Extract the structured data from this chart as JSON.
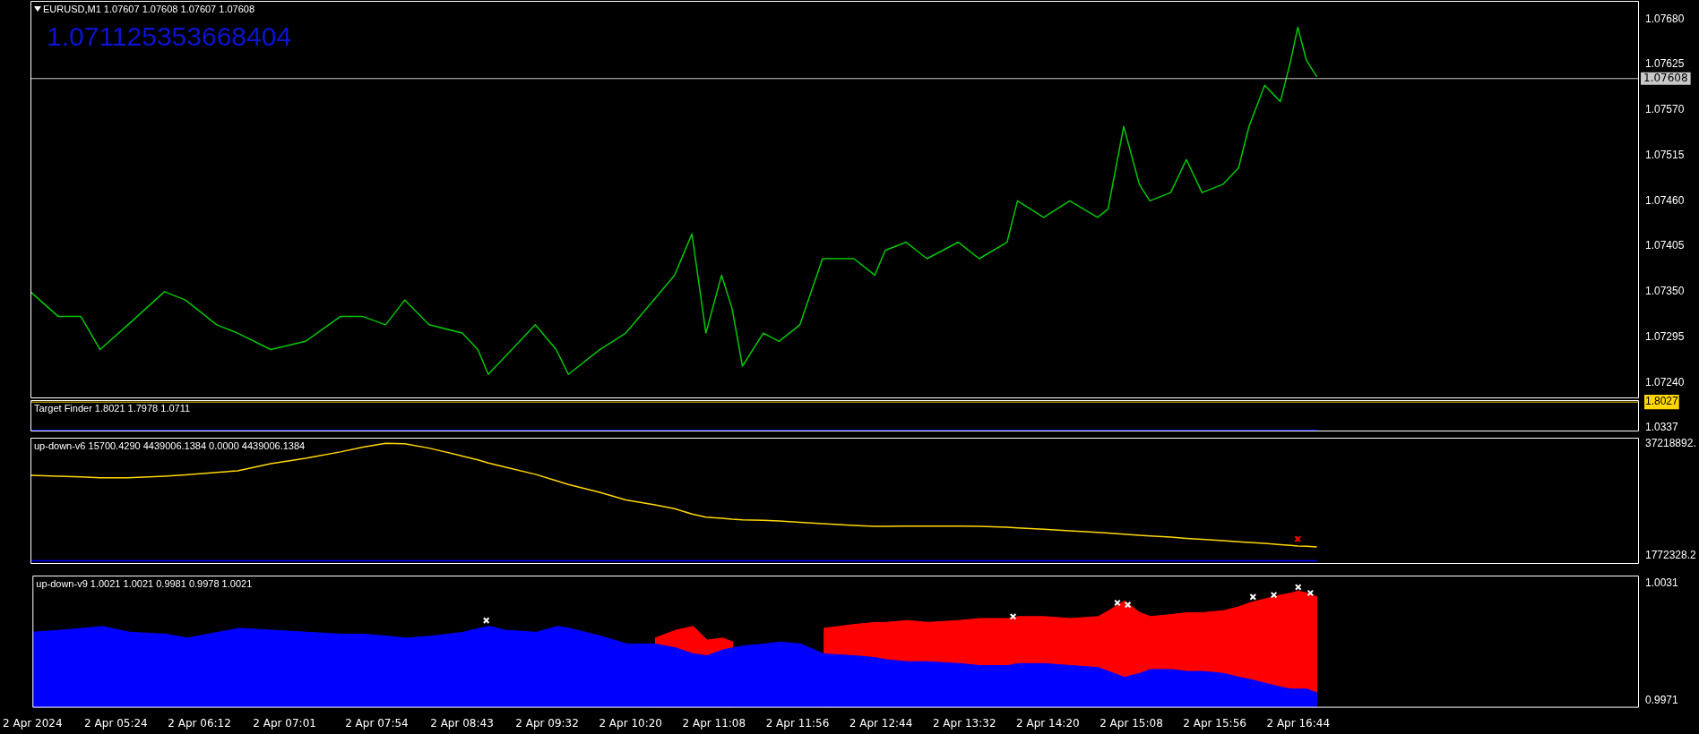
{
  "chart_data": [
    {
      "type": "line",
      "title": "EURUSD,M1 1.07607 1.07608 1.07607 1.07608",
      "annotations": [
        "1.071125353668404"
      ],
      "x": [
        "2024-04-02T04:36",
        "2024-04-02T04:52",
        "2024-04-02T05:05",
        "2024-04-02T05:16",
        "2024-04-02T05:32",
        "2024-04-02T05:53",
        "2024-04-02T06:05",
        "2024-04-02T06:23",
        "2024-04-02T06:35",
        "2024-04-02T06:54",
        "2024-04-02T07:14",
        "2024-04-02T07:34",
        "2024-04-02T07:47",
        "2024-04-02T08:00",
        "2024-04-02T08:11",
        "2024-04-02T08:25",
        "2024-04-02T08:44",
        "2024-04-02T08:53",
        "2024-04-02T08:59",
        "2024-04-02T09:08",
        "2024-04-02T09:26",
        "2024-04-02T09:38",
        "2024-04-02T09:45",
        "2024-04-02T10:03",
        "2024-04-02T10:18",
        "2024-04-02T10:34",
        "2024-04-02T10:46",
        "2024-04-02T10:56",
        "2024-04-02T11:04",
        "2024-04-02T11:13",
        "2024-04-02T11:19",
        "2024-04-02T11:25",
        "2024-04-02T11:37",
        "2024-04-02T11:46",
        "2024-04-02T11:58",
        "2024-04-02T12:11",
        "2024-04-02T12:29",
        "2024-04-02T12:41",
        "2024-04-02T12:47",
        "2024-04-02T12:59",
        "2024-04-02T13:11",
        "2024-04-02T13:29",
        "2024-04-02T13:41",
        "2024-04-02T13:57",
        "2024-04-02T14:03",
        "2024-04-02T14:18",
        "2024-04-02T14:33",
        "2024-04-02T14:49",
        "2024-04-02T14:55",
        "2024-04-02T15:04",
        "2024-04-02T15:13",
        "2024-04-02T15:19",
        "2024-04-02T15:31",
        "2024-04-02T15:40",
        "2024-04-02T15:49",
        "2024-04-02T16:01",
        "2024-04-02T16:10",
        "2024-04-02T16:16",
        "2024-04-02T16:25",
        "2024-04-02T16:34",
        "2024-04-02T16:40",
        "2024-04-02T16:44",
        "2024-04-02T16:49",
        "2024-04-02T16:55"
      ],
      "series": [
        {
          "color": "#00c800",
          "values": [
            1.0735,
            1.0732,
            1.0732,
            1.0728,
            1.0731,
            1.0735,
            1.0734,
            1.0731,
            1.073,
            1.0728,
            1.0729,
            1.0732,
            1.0732,
            1.0731,
            1.0734,
            1.0731,
            1.073,
            1.0728,
            1.0725,
            1.0727,
            1.0731,
            1.0728,
            1.0725,
            1.0728,
            1.073,
            1.0734,
            1.0737,
            1.0742,
            1.073,
            1.0737,
            1.0733,
            1.0726,
            1.073,
            1.0729,
            1.0731,
            1.0739,
            1.0739,
            1.0737,
            1.074,
            1.0741,
            1.0739,
            1.0741,
            1.0739,
            1.0741,
            1.0746,
            1.0744,
            1.0746,
            1.0744,
            1.0745,
            1.0755,
            1.0748,
            1.0746,
            1.0747,
            1.0751,
            1.0747,
            1.0748,
            1.075,
            1.0755,
            1.076,
            1.0758,
            1.0763,
            1.0767,
            1.0763,
            1.0761
          ]
        }
      ],
      "xlim": [
        "2024-04-02T04:36",
        "2024-04-02T20:00"
      ],
      "ylim": [
        1.07221,
        1.07702
      ],
      "yticks": [
        {
          "value": 1.0724,
          "label": "1.07240"
        },
        1.07295,
        {
          "value": 1.0735,
          "label": "1.07350"
        },
        1.07405,
        {
          "value": 1.0746,
          "label": "1.07460"
        },
        1.07515,
        {
          "value": 1.0757,
          "label": "1.07570"
        },
        1.07625,
        {
          "value": 1.0768,
          "label": "1.07680"
        }
      ],
      "ref_lines": [
        {
          "axis": "y",
          "value": 1.07608,
          "label": "1.07608",
          "color": "#c8c8c8"
        }
      ],
      "tick_labels": "y"
    },
    {
      "type": "line",
      "title": "Target Finder 1.8021 1.7978 1.0711",
      "series": [
        {
          "color": "#0000ff",
          "x": [
            "2024-04-02T04:36",
            "2024-04-02T16:55"
          ],
          "values": [
            0.96,
            0.96
          ]
        }
      ],
      "xlim": [
        "2024-04-02T04:36",
        "2024-04-02T20:00"
      ],
      "ylim": [
        0.93,
        1.86
      ],
      "yticks": [
        1.0337,
        1.8027
      ],
      "ref_lines": [
        {
          "axis": "y",
          "value": 1.8027,
          "color": "#ffd700"
        }
      ],
      "tick_labels": "y"
    },
    {
      "type": "line",
      "title": "up-down-v6 15700.4290 4439006.1384 0.0000 4439006.1384",
      "x": [
        "2024-04-02T04:36",
        "2024-04-02T04:52",
        "2024-04-02T05:05",
        "2024-04-02T05:16",
        "2024-04-02T05:32",
        "2024-04-02T05:53",
        "2024-04-02T06:05",
        "2024-04-02T06:23",
        "2024-04-02T06:35",
        "2024-04-02T06:54",
        "2024-04-02T07:14",
        "2024-04-02T07:34",
        "2024-04-02T07:47",
        "2024-04-02T08:00",
        "2024-04-02T08:11",
        "2024-04-02T08:25",
        "2024-04-02T08:44",
        "2024-04-02T08:53",
        "2024-04-02T08:59",
        "2024-04-02T09:08",
        "2024-04-02T09:26",
        "2024-04-02T09:38",
        "2024-04-02T09:45",
        "2024-04-02T10:03",
        "2024-04-02T10:18",
        "2024-04-02T10:34",
        "2024-04-02T10:46",
        "2024-04-02T10:56",
        "2024-04-02T11:04",
        "2024-04-02T11:13",
        "2024-04-02T11:19",
        "2024-04-02T11:25",
        "2024-04-02T11:37",
        "2024-04-02T11:46",
        "2024-04-02T11:58",
        "2024-04-02T12:11",
        "2024-04-02T12:29",
        "2024-04-02T12:41",
        "2024-04-02T12:47",
        "2024-04-02T12:59",
        "2024-04-02T13:11",
        "2024-04-02T13:29",
        "2024-04-02T13:41",
        "2024-04-02T13:57",
        "2024-04-02T14:03",
        "2024-04-02T14:18",
        "2024-04-02T14:33",
        "2024-04-02T14:49",
        "2024-04-02T14:55",
        "2024-04-02T15:04",
        "2024-04-02T15:13",
        "2024-04-02T15:19",
        "2024-04-02T15:31",
        "2024-04-02T15:40",
        "2024-04-02T15:49",
        "2024-04-02T16:01",
        "2024-04-02T16:10",
        "2024-04-02T16:16",
        "2024-04-02T16:25",
        "2024-04-02T16:34",
        "2024-04-02T16:40",
        "2024-04-02T16:44",
        "2024-04-02T16:49",
        "2024-04-02T16:55"
      ],
      "series": [
        {
          "color": "#0000ff",
          "x": [
            "2024-04-02T04:36",
            "2024-04-02T16:55"
          ],
          "values": [
            0,
            0
          ]
        },
        {
          "color": "#ffd800",
          "values": [
            27100000,
            26800000,
            26600000,
            26300000,
            26300000,
            26800000,
            27200000,
            28000000,
            28500000,
            30800000,
            32500000,
            34500000,
            36000000,
            37200000,
            37100000,
            35700000,
            33200000,
            32000000,
            31000000,
            29800000,
            27400000,
            25400000,
            24200000,
            21700000,
            19300000,
            17800000,
            16500000,
            14800000,
            13800000,
            13500000,
            13200000,
            13000000,
            12800000,
            12600000,
            12200000,
            11800000,
            11200000,
            10900000,
            10900000,
            11000000,
            11000000,
            11000000,
            10900000,
            10600000,
            10400000,
            10000000,
            9500000,
            9000000,
            8800000,
            8400000,
            8100000,
            7900000,
            7500000,
            7100000,
            6800000,
            6400000,
            6000000,
            5800000,
            5500000,
            5100000,
            4900000,
            4700000,
            4600000,
            4400000
          ]
        },
        {
          "type": "scatter",
          "marker": "cross",
          "color": "#ff0000",
          "x": [
            "2024-04-02T16:44"
          ],
          "values": [
            6900000
          ]
        }
      ],
      "xlim": [
        "2024-04-02T04:36",
        "2024-04-02T20:00"
      ],
      "ylim": [
        -1000000,
        39000000
      ],
      "yticks": [
        {
          "value": 37218892,
          "label": "37218892."
        },
        1772328.2
      ],
      "tick_labels": "y"
    },
    {
      "type": "area",
      "title": "up-down-v9 1.0021 1.0021 0.9981 0.9978 1.0021",
      "x": [
        "2024-04-02T04:36",
        "2024-04-02T04:52",
        "2024-04-02T05:05",
        "2024-04-02T05:16",
        "2024-04-02T05:32",
        "2024-04-02T05:53",
        "2024-04-02T06:05",
        "2024-04-02T06:23",
        "2024-04-02T06:35",
        "2024-04-02T06:54",
        "2024-04-02T07:14",
        "2024-04-02T07:34",
        "2024-04-02T07:47",
        "2024-04-02T08:00",
        "2024-04-02T08:11",
        "2024-04-02T08:25",
        "2024-04-02T08:44",
        "2024-04-02T08:53",
        "2024-04-02T08:59",
        "2024-04-02T09:08",
        "2024-04-02T09:26",
        "2024-04-02T09:38",
        "2024-04-02T09:45",
        "2024-04-02T10:03",
        "2024-04-02T10:18",
        "2024-04-02T10:34",
        "2024-04-02T10:46",
        "2024-04-02T10:56",
        "2024-04-02T11:04",
        "2024-04-02T11:13",
        "2024-04-02T11:19",
        "2024-04-02T11:25",
        "2024-04-02T11:37",
        "2024-04-02T11:46",
        "2024-04-02T11:58",
        "2024-04-02T12:11",
        "2024-04-02T12:29",
        "2024-04-02T12:41",
        "2024-04-02T12:47",
        "2024-04-02T12:59",
        "2024-04-02T13:11",
        "2024-04-02T13:29",
        "2024-04-02T13:41",
        "2024-04-02T13:57",
        "2024-04-02T14:03",
        "2024-04-02T14:18",
        "2024-04-02T14:33",
        "2024-04-02T14:49",
        "2024-04-02T14:55",
        "2024-04-02T15:04",
        "2024-04-02T15:13",
        "2024-04-02T15:19",
        "2024-04-02T15:31",
        "2024-04-02T15:40",
        "2024-04-02T15:49",
        "2024-04-02T16:01",
        "2024-04-02T16:10",
        "2024-04-02T16:16",
        "2024-04-02T16:25",
        "2024-04-02T16:34",
        "2024-04-02T16:40",
        "2024-04-02T16:44",
        "2024-04-02T16:49",
        "2024-04-02T16:55"
      ],
      "series": [
        {
          "color": "#ff0000",
          "values": [
            null,
            null,
            null,
            null,
            null,
            null,
            null,
            null,
            null,
            null,
            null,
            null,
            null,
            null,
            null,
            null,
            null,
            null,
            null,
            null,
            null,
            null,
            null,
            null,
            null,
            1.0003,
            1.0007,
            1.0009,
            1.0002,
            1.0003,
            1.0001,
            null,
            null,
            null,
            null,
            1.0008,
            1.001,
            1.0011,
            1.0011,
            1.0012,
            1.0011,
            1.0012,
            1.0013,
            1.0013,
            1.0014,
            1.0014,
            1.0013,
            1.0014,
            1.0017,
            1.0022,
            1.0016,
            1.0014,
            1.0015,
            1.0016,
            1.0016,
            1.0017,
            1.0019,
            1.0021,
            1.0023,
            1.0025,
            1.0026,
            1.0027,
            1.0026,
            1.0024
          ]
        },
        {
          "color": "#0000ff",
          "values": [
            1.0006,
            1.0007,
            1.0008,
            1.0009,
            1.0006,
            1.0005,
            1.0003,
            1.0006,
            1.0008,
            1.0007,
            1.0006,
            1.0005,
            1.0005,
            1.0004,
            1.0003,
            1.0004,
            1.0006,
            1.0008,
            1.0009,
            1.0007,
            1.0006,
            1.0009,
            1.0008,
            1.0004,
            1,
            1,
            0.9998,
            0.9995,
            0.9994,
            0.9997,
            0.9998,
            0.9999,
            1,
            1.0001,
            1,
            0.9995,
            0.9994,
            0.9993,
            0.9992,
            0.9991,
            0.9991,
            0.999,
            0.9989,
            0.9989,
            0.999,
            0.999,
            0.9989,
            0.9988,
            0.9986,
            0.9983,
            0.9985,
            0.9987,
            0.9987,
            0.9986,
            0.9986,
            0.9985,
            0.9983,
            0.9982,
            0.998,
            0.9978,
            0.9977,
            0.9977,
            0.9977,
            0.9975
          ]
        },
        {
          "type": "scatter",
          "marker": "cross",
          "color": "#ffffff",
          "x": [
            "2024-04-02T08:57",
            "2024-04-02T14:00",
            "2024-04-02T15:00",
            "2024-04-02T15:06",
            "2024-04-02T16:18",
            "2024-04-02T16:30",
            "2024-04-02T16:44",
            "2024-04-02T16:51"
          ],
          "values": [
            1.0012,
            1.0014,
            1.0021,
            1.002,
            1.0024,
            1.0025,
            1.0029,
            1.0026
          ]
        }
      ],
      "xlim": [
        "2024-04-02T04:36",
        "2024-04-02T20:00"
      ],
      "xticks": [
        {
          "value": "2024-04-02T04:36",
          "label": "2 Apr 2024"
        },
        {
          "value": "2024-04-02T05:24",
          "label": "2 Apr 05:24"
        },
        {
          "value": "2024-04-02T06:12",
          "label": "2 Apr 06:12"
        },
        {
          "value": "2024-04-02T07:01",
          "label": "2 Apr 07:01"
        },
        {
          "value": "2024-04-02T07:54",
          "label": "2 Apr 07:54"
        },
        {
          "value": "2024-04-02T08:43",
          "label": "2 Apr 08:43"
        },
        {
          "value": "2024-04-02T09:32",
          "label": "2 Apr 09:32"
        },
        {
          "value": "2024-04-02T10:20",
          "label": "2 Apr 10:20"
        },
        {
          "value": "2024-04-02T11:08",
          "label": "2 Apr 11:08"
        },
        {
          "value": "2024-04-02T11:56",
          "label": "2 Apr 11:56"
        },
        {
          "value": "2024-04-02T12:44",
          "label": "2 Apr 12:44"
        },
        {
          "value": "2024-04-02T13:32",
          "label": "2 Apr 13:32"
        },
        {
          "value": "2024-04-02T14:20",
          "label": "2 Apr 14:20"
        },
        {
          "value": "2024-04-02T15:08",
          "label": "2 Apr 15:08"
        },
        {
          "value": "2024-04-02T15:56",
          "label": "2 Apr 15:56"
        },
        {
          "value": "2024-04-02T16:44",
          "label": "2 Apr 16:44"
        }
      ],
      "ylim": [
        0.99675,
        1.00349
      ],
      "yticks": [
        1.0031,
        0.9971
      ]
    }
  ]
}
